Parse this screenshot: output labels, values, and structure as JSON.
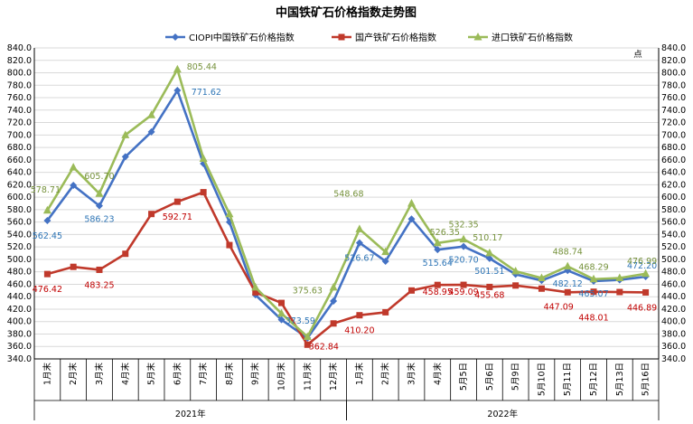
{
  "chart_data": {
    "type": "line",
    "title": "中国铁矿石价格指数走势图",
    "y_unit_label": "点",
    "ylim": [
      340,
      840
    ],
    "ystep": 20,
    "grid": true,
    "legend_position": "top",
    "categories": [
      "1月末",
      "2月末",
      "3月末",
      "4月末",
      "5月末",
      "6月末",
      "7月末",
      "8月末",
      "9月末",
      "10月末",
      "11月末",
      "12月末",
      "1月末",
      "2月末",
      "3月末",
      "4月末",
      "5月5日",
      "5月6日",
      "5月9日",
      "5月10日",
      "5月11日",
      "5月12日",
      "5月13日",
      "5月16日"
    ],
    "year_groups": [
      {
        "label": "2021年",
        "start": 0,
        "end": 11
      },
      {
        "label": "2022年",
        "start": 12,
        "end": 23
      }
    ],
    "series": [
      {
        "name": "CIOPI中国铁矿石价格指数",
        "color": "#4472C4",
        "marker": "diamond",
        "label_color": "#2E75B6",
        "values": [
          562.45,
          619,
          586.23,
          665,
          705,
          771.62,
          654,
          560,
          443,
          403,
          373.59,
          433,
          526.67,
          497,
          565,
          515.64,
          520.7,
          501.51,
          476,
          466,
          482.12,
          465.07,
          467,
          472.2
        ],
        "labels": [
          {
            "i": 0,
            "text": "562.45",
            "dx": 0,
            "dy": 20
          },
          {
            "i": 2,
            "text": "586.23",
            "dx": 0,
            "dy": 18
          },
          {
            "i": 5,
            "text": "771.62",
            "dx": 32,
            "dy": 5
          },
          {
            "i": 10,
            "text": "373.59",
            "dx": -8,
            "dy": -16
          },
          {
            "i": 12,
            "text": "526.67",
            "dx": 0,
            "dy": 20
          },
          {
            "i": 15,
            "text": "515.64",
            "dx": 0,
            "dy": 18
          },
          {
            "i": 16,
            "text": "520.70",
            "dx": 0,
            "dy": 18
          },
          {
            "i": 17,
            "text": "501.51",
            "dx": 0,
            "dy": 17
          },
          {
            "i": 20,
            "text": "482.12",
            "dx": 0,
            "dy": 18
          },
          {
            "i": 21,
            "text": "465.07",
            "dx": 0,
            "dy": 17
          },
          {
            "i": 23,
            "text": "472.20",
            "dx": -4,
            "dy": -9
          }
        ]
      },
      {
        "name": "国产铁矿石价格指数",
        "color": "#C0392B",
        "marker": "square",
        "label_color": "#C00000",
        "values": [
          476.42,
          488,
          483.25,
          509,
          573,
          592.71,
          608,
          523,
          447,
          430,
          362.84,
          397,
          410.2,
          415,
          450,
          458.95,
          459.09,
          455.68,
          458,
          453,
          447.09,
          448.01,
          447.5,
          446.89
        ],
        "labels": [
          {
            "i": 0,
            "text": "476.42",
            "dx": 0,
            "dy": 20
          },
          {
            "i": 2,
            "text": "483.25",
            "dx": 0,
            "dy": 20
          },
          {
            "i": 5,
            "text": "592.71",
            "dx": 0,
            "dy": 20
          },
          {
            "i": 10,
            "text": "362.84",
            "dx": 18,
            "dy": 5
          },
          {
            "i": 12,
            "text": "410.20",
            "dx": 0,
            "dy": 20
          },
          {
            "i": 15,
            "text": "458.95",
            "dx": 0,
            "dy": 11
          },
          {
            "i": 16,
            "text": "459.09",
            "dx": 0,
            "dy": 11
          },
          {
            "i": 17,
            "text": "455.68",
            "dx": 0,
            "dy": 12
          },
          {
            "i": 20,
            "text": "447.09",
            "dx": -10,
            "dy": 19
          },
          {
            "i": 21,
            "text": "448.01",
            "dx": 0,
            "dy": 32
          },
          {
            "i": 23,
            "text": "446.89",
            "dx": -4,
            "dy": 20
          }
        ]
      },
      {
        "name": "进口铁矿石价格指数",
        "color": "#9BBB59",
        "marker": "triangle",
        "label_color": "#76923C",
        "values": [
          578.71,
          648,
          605.7,
          700,
          732,
          805.44,
          662,
          573,
          455,
          413,
          375.63,
          455,
          548.68,
          512,
          590,
          526.35,
          532.35,
          510.17,
          481,
          470,
          488.74,
          468.29,
          470,
          476.99
        ],
        "labels": [
          {
            "i": 0,
            "text": "578.71",
            "dx": -2,
            "dy": -20
          },
          {
            "i": 2,
            "text": "605.70",
            "dx": 0,
            "dy": -16
          },
          {
            "i": 5,
            "text": "805.44",
            "dx": 27,
            "dy": 0
          },
          {
            "i": 10,
            "text": "375.63",
            "dx": 0,
            "dy": -48
          },
          {
            "i": 12,
            "text": "548.68",
            "dx": -12,
            "dy": -36
          },
          {
            "i": 15,
            "text": "526.35",
            "dx": 8,
            "dy": -9
          },
          {
            "i": 16,
            "text": "532.35",
            "dx": 0,
            "dy": -13
          },
          {
            "i": 17,
            "text": "510.17",
            "dx": -2,
            "dy": -14
          },
          {
            "i": 20,
            "text": "488.74",
            "dx": 0,
            "dy": -13
          },
          {
            "i": 21,
            "text": "468.29",
            "dx": 0,
            "dy": -10
          },
          {
            "i": 23,
            "text": "476.99",
            "dx": -4,
            "dy": -11
          }
        ]
      }
    ]
  }
}
